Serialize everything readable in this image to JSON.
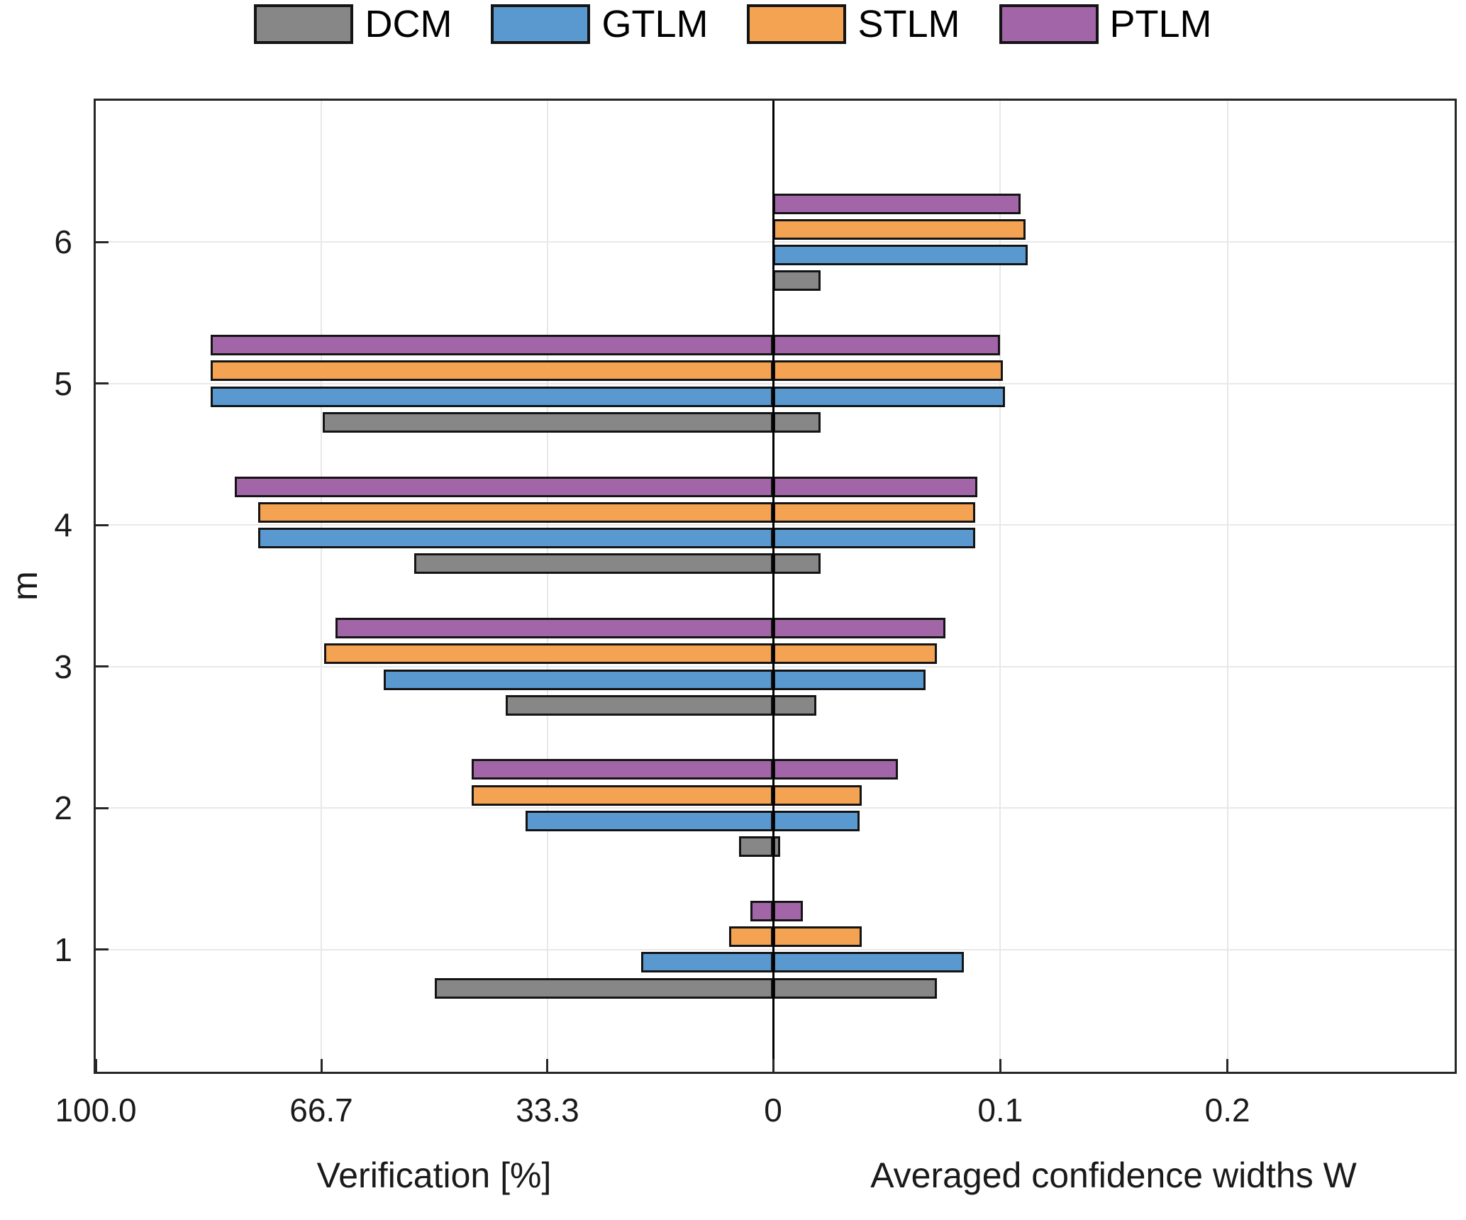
{
  "figure": {
    "ylabel": "m"
  },
  "chart_data": {
    "type": "bar",
    "orientation": "horizontal-diverging",
    "ylabel": "m",
    "categories": [
      1,
      2,
      3,
      4,
      5,
      6
    ],
    "y_tick_labels": [
      "1",
      "2",
      "3",
      "4",
      "5",
      "6"
    ],
    "left_axis": {
      "label": "Verification [%]",
      "max": 100,
      "ticks": [
        {
          "value": 100,
          "label": "100.0"
        },
        {
          "value": 66.7,
          "label": "66.7"
        },
        {
          "value": 33.3,
          "label": "33.3"
        },
        {
          "value": 0,
          "label": "0"
        }
      ]
    },
    "right_axis": {
      "label": "Averaged confidence widths W",
      "max": 0.3,
      "ticks": [
        {
          "value": 0.1,
          "label": "0.1"
        },
        {
          "value": 0.2,
          "label": "0.2"
        }
      ]
    },
    "legend_position": "top-center",
    "grid": true,
    "series": [
      {
        "name": "DCM",
        "color": "#878787",
        "verification": [
          50.0,
          5.0,
          39.5,
          53.0,
          66.5,
          0
        ],
        "widths": [
          0.072,
          0.003,
          0.019,
          0.021,
          0.021,
          0.021
        ]
      },
      {
        "name": "GTLM",
        "color": "#5A99D0",
        "verification": [
          19.5,
          36.5,
          57.5,
          76.0,
          83.0,
          0
        ],
        "widths": [
          0.084,
          0.038,
          0.067,
          0.089,
          0.102,
          0.112
        ]
      },
      {
        "name": "STLM",
        "color": "#F4A353",
        "verification": [
          6.5,
          44.5,
          66.3,
          76.0,
          83.0,
          0
        ],
        "widths": [
          0.039,
          0.039,
          0.072,
          0.089,
          0.101,
          0.111
        ]
      },
      {
        "name": "PTLM",
        "color": "#A266A8",
        "verification": [
          3.3,
          44.5,
          64.6,
          79.5,
          83.0,
          0
        ],
        "widths": [
          0.013,
          0.055,
          0.076,
          0.09,
          0.1,
          0.109
        ]
      }
    ],
    "colors": {
      "bar_edge": "#141414",
      "gridline": "#E8E8E8",
      "axis_box": "#262626",
      "zero_line": "#000000",
      "text": "#1A1A1A"
    }
  }
}
